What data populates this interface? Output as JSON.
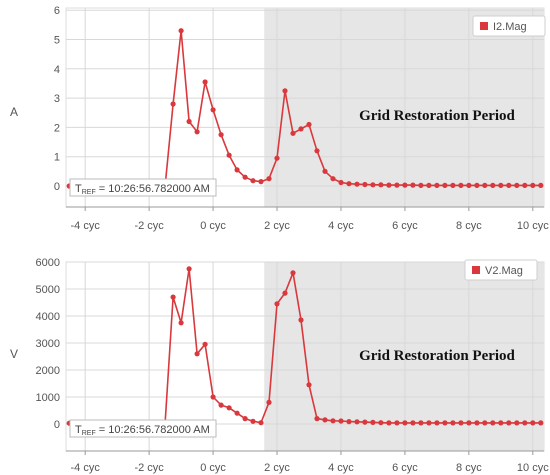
{
  "accent": "#d9383c",
  "shade_color": "#e6e6e6",
  "chart_data": [
    {
      "type": "line",
      "ylabel": "A",
      "ylim": [
        0,
        6
      ],
      "xlim": [
        -4.6,
        10.35
      ],
      "xticks": [
        -4,
        -2,
        0,
        2,
        4,
        6,
        8,
        10
      ],
      "xtick_labels": [
        "-4 cyc",
        "-2 cyc",
        "0 cyc",
        "2 cyc",
        "4 cyc",
        "6 cyc",
        "8 cyc",
        "10 cyc"
      ],
      "yticks": [
        0,
        1,
        2,
        3,
        4,
        5,
        6
      ],
      "ytick_labels": [
        "0",
        "1",
        "2",
        "3",
        "4",
        "5",
        "6"
      ],
      "grid": true,
      "legend": "top-right",
      "shaded_start": 1.6,
      "annotation": "Grid Restoration Period",
      "tref": {
        "prefix": "T",
        "sub": "REF",
        "value": " = 10:26:56.782000 AM"
      },
      "series": [
        {
          "name": "I2.Mag",
          "x": [
            -4.5,
            -4.25,
            -4.0,
            -3.75,
            -3.5,
            -3.25,
            -3.0,
            -2.75,
            -2.5,
            -2.25,
            -2.0,
            -1.75,
            -1.5,
            -1.25,
            -1.0,
            -0.75,
            -0.5,
            -0.25,
            0.0,
            0.25,
            0.5,
            0.75,
            1.0,
            1.25,
            1.5,
            1.75,
            2.0,
            2.25,
            2.5,
            2.75,
            3.0,
            3.25,
            3.5,
            3.75,
            4.0,
            4.25,
            4.5,
            4.75,
            5.0,
            5.25,
            5.5,
            5.75,
            6.0,
            6.25,
            6.5,
            6.75,
            7.0,
            7.25,
            7.5,
            7.75,
            8.0,
            8.25,
            8.5,
            8.75,
            9.0,
            9.25,
            9.5,
            9.75,
            10.0,
            10.25
          ],
          "y": [
            0,
            0,
            0,
            0,
            0,
            0,
            0,
            0,
            0,
            0,
            0,
            0,
            0,
            2.8,
            5.3,
            2.2,
            1.85,
            3.55,
            2.6,
            1.75,
            1.05,
            0.55,
            0.3,
            0.18,
            0.15,
            0.25,
            0.95,
            3.25,
            1.8,
            1.95,
            2.1,
            1.2,
            0.5,
            0.25,
            0.12,
            0.08,
            0.06,
            0.05,
            0.04,
            0.04,
            0.03,
            0.03,
            0.03,
            0.03,
            0.02,
            0.02,
            0.02,
            0.02,
            0.02,
            0.02,
            0.02,
            0.02,
            0.02,
            0.02,
            0.02,
            0.02,
            0.02,
            0.02,
            0.02,
            0.02
          ]
        }
      ]
    },
    {
      "type": "line",
      "ylabel": "V",
      "ylim": [
        0,
        6000
      ],
      "xlim": [
        -4.6,
        10.35
      ],
      "xticks": [
        -4,
        -2,
        0,
        2,
        4,
        6,
        8,
        10
      ],
      "xtick_labels": [
        "-4 cyc",
        "-2 cyc",
        "0 cyc",
        "2 cyc",
        "4 cyc",
        "6 cyc",
        "8 cyc",
        "10 cyc"
      ],
      "yticks": [
        0,
        1000,
        2000,
        3000,
        4000,
        5000,
        6000
      ],
      "ytick_labels": [
        "0",
        "1000",
        "2000",
        "3000",
        "4000",
        "5000",
        "6000"
      ],
      "grid": true,
      "legend": "top-right",
      "shaded_start": 1.6,
      "annotation": "Grid Restoration Period",
      "tref": {
        "prefix": "T",
        "sub": "REF",
        "value": " = 10:26:56.782000 AM"
      },
      "series": [
        {
          "name": "V2.Mag",
          "x": [
            -4.5,
            -4.25,
            -4.0,
            -3.75,
            -3.5,
            -3.25,
            -3.0,
            -2.75,
            -2.5,
            -2.25,
            -2.0,
            -1.75,
            -1.5,
            -1.25,
            -1.0,
            -0.75,
            -0.5,
            -0.25,
            0.0,
            0.25,
            0.5,
            0.75,
            1.0,
            1.25,
            1.5,
            1.75,
            2.0,
            2.25,
            2.5,
            2.75,
            3.0,
            3.25,
            3.5,
            3.75,
            4.0,
            4.25,
            4.5,
            4.75,
            5.0,
            5.25,
            5.5,
            5.75,
            6.0,
            6.25,
            6.5,
            6.75,
            7.0,
            7.25,
            7.5,
            7.75,
            8.0,
            8.25,
            8.5,
            8.75,
            9.0,
            9.25,
            9.5,
            9.75,
            10.0,
            10.25
          ],
          "y": [
            30,
            30,
            30,
            30,
            30,
            30,
            30,
            30,
            30,
            30,
            30,
            30,
            30,
            4700,
            3750,
            5750,
            2600,
            2950,
            1000,
            700,
            600,
            400,
            200,
            100,
            50,
            800,
            4450,
            4850,
            5600,
            3850,
            1450,
            200,
            150,
            120,
            110,
            90,
            80,
            70,
            60,
            50,
            40,
            40,
            40,
            40,
            40,
            40,
            40,
            40,
            40,
            40,
            40,
            40,
            40,
            40,
            40,
            40,
            40,
            40,
            40,
            40
          ]
        }
      ]
    }
  ]
}
